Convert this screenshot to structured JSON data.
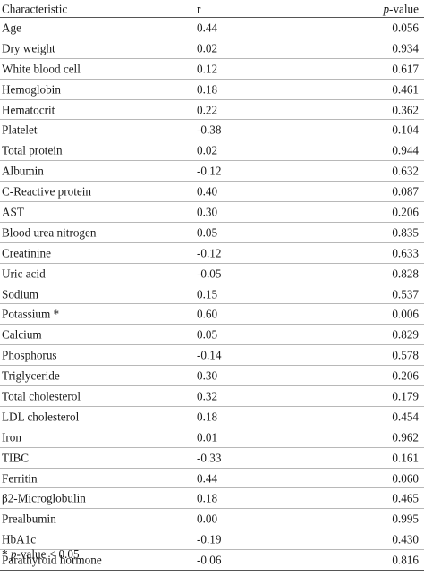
{
  "header": {
    "characteristic": "Characteristic",
    "r": "r",
    "p_italic": "p",
    "p_rest": "-value"
  },
  "rows": [
    {
      "name": "Age",
      "r": "0.44",
      "p": "0.056"
    },
    {
      "name": "Dry weight",
      "r": "0.02",
      "p": "0.934"
    },
    {
      "name": "White blood cell",
      "r": "0.12",
      "p": "0.617"
    },
    {
      "name": "Hemoglobin",
      "r": "0.18",
      "p": "0.461"
    },
    {
      "name": "Hematocrit",
      "r": "0.22",
      "p": "0.362"
    },
    {
      "name": "Platelet",
      "r": "-0.38",
      "p": "0.104"
    },
    {
      "name": "Total protein",
      "r": "0.02",
      "p": "0.944"
    },
    {
      "name": "Albumin",
      "r": "-0.12",
      "p": "0.632"
    },
    {
      "name": "C-Reactive protein",
      "r": "0.40",
      "p": "0.087"
    },
    {
      "name": "AST",
      "r": "0.30",
      "p": "0.206"
    },
    {
      "name": "Blood urea nitrogen",
      "r": "0.05",
      "p": "0.835"
    },
    {
      "name": "Creatinine",
      "r": "-0.12",
      "p": "0.633"
    },
    {
      "name": "Uric acid",
      "r": "-0.05",
      "p": "0.828"
    },
    {
      "name": "Sodium",
      "r": "0.15",
      "p": "0.537"
    },
    {
      "name": "Potassium *",
      "r": "0.60",
      "p": "0.006"
    },
    {
      "name": "Calcium",
      "r": "0.05",
      "p": "0.829"
    },
    {
      "name": "Phosphorus",
      "r": "-0.14",
      "p": "0.578"
    },
    {
      "name": "Triglyceride",
      "r": "0.30",
      "p": "0.206"
    },
    {
      "name": "Total cholesterol",
      "r": "0.32",
      "p": "0.179"
    },
    {
      "name": "LDL cholesterol",
      "r": "0.18",
      "p": "0.454"
    },
    {
      "name": "Iron",
      "r": "0.01",
      "p": "0.962"
    },
    {
      "name": "TIBC",
      "r": "-0.33",
      "p": "0.161"
    },
    {
      "name": "Ferritin",
      "r": "0.44",
      "p": "0.060"
    },
    {
      "name": "β2-Microglobulin",
      "r": "0.18",
      "p": "0.465"
    },
    {
      "name": "Prealbumin",
      "r": "0.00",
      "p": "0.995"
    },
    {
      "name": "HbA1c",
      "r": "-0.19",
      "p": "0.430"
    },
    {
      "name": "Parathyroid hormone",
      "r": "-0.06",
      "p": "0.816"
    }
  ],
  "footnote": {
    "star": "* ",
    "p_italic": "p",
    "rest": "-value < 0.05"
  }
}
